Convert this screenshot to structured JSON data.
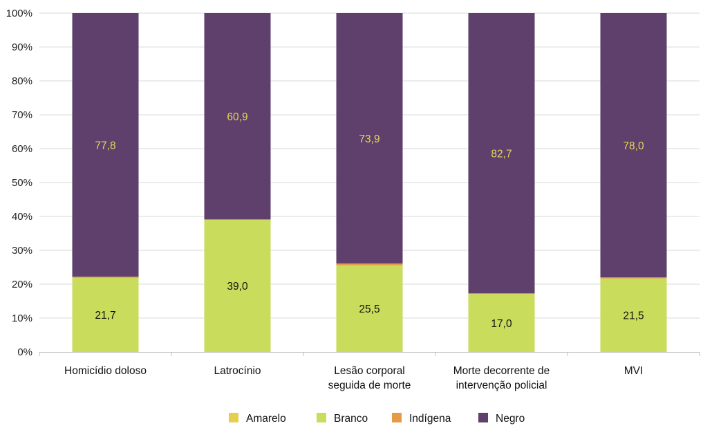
{
  "chart_data": {
    "type": "bar",
    "stacked": true,
    "categories": [
      [
        "Homicídio doloso"
      ],
      [
        "Latrocínio"
      ],
      [
        "Lesão corporal",
        "seguida de morte"
      ],
      [
        "Morte decorrente de",
        "intervenção policial"
      ],
      [
        "MVI"
      ]
    ],
    "series": [
      {
        "name": "Amarelo",
        "color": "#e6cf4f",
        "values": [
          0.2,
          0.1,
          0.1,
          0.1,
          0.2
        ]
      },
      {
        "name": "Branco",
        "color": "#c9dc5b",
        "values": [
          21.7,
          39.0,
          25.5,
          17.0,
          21.5
        ]
      },
      {
        "name": "Indígena",
        "color": "#e59a46",
        "values": [
          0.3,
          0.0,
          0.5,
          0.2,
          0.3
        ]
      },
      {
        "name": "Negro",
        "color": "#5f3f6b",
        "values": [
          77.8,
          60.9,
          73.9,
          82.7,
          78.0
        ]
      }
    ],
    "data_labels": {
      "Branco": [
        "21,7",
        "39,0",
        "25,5",
        "17,0",
        "21,5"
      ],
      "Negro": [
        "77,8",
        "60,9",
        "73,9",
        "82,7",
        "78,0"
      ]
    },
    "y_ticks": [
      "0%",
      "10%",
      "20%",
      "30%",
      "40%",
      "50%",
      "60%",
      "70%",
      "80%",
      "90%",
      "100%"
    ],
    "ylim": [
      0,
      100
    ],
    "grid": true,
    "legend_position": "bottom-center",
    "title": "",
    "xlabel": "",
    "ylabel": ""
  }
}
